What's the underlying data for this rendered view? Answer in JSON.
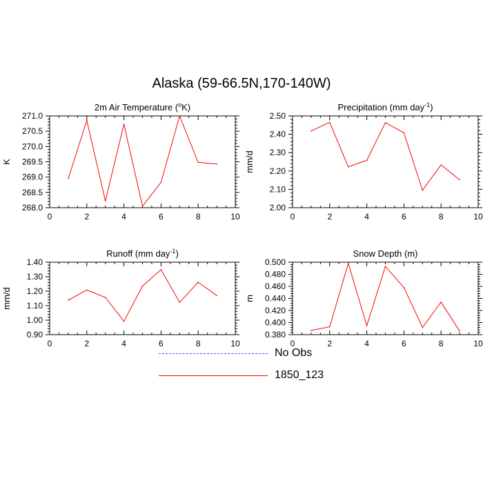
{
  "figure_title": "Alaska (59-66.5N,170-140W)",
  "legend": {
    "items": [
      {
        "label": "No Obs",
        "color": "#4a4aff",
        "dash": true
      },
      {
        "label": "1850_123",
        "color": "#ff0000",
        "dash": false
      }
    ]
  },
  "chart_data": [
    {
      "type": "line",
      "title_pre": "2m Air Temperature (",
      "title_sup": "o",
      "title_post": "K)",
      "ylabel": "K",
      "xlim": [
        0,
        10
      ],
      "ylim": [
        268.0,
        271.0
      ],
      "xticks": [
        0,
        2,
        4,
        6,
        8,
        10
      ],
      "yticks": [
        268.0,
        268.5,
        269.0,
        269.5,
        270.0,
        270.5,
        271.0
      ],
      "ytick_labels": [
        "268.0",
        "268.5",
        "269.0",
        "269.5",
        "270.0",
        "270.5",
        "271.0"
      ],
      "series": [
        {
          "color": "#ff0000",
          "x": [
            1,
            2,
            3,
            4,
            5,
            6,
            7,
            8,
            9
          ],
          "y": [
            268.95,
            270.85,
            268.22,
            270.73,
            268.05,
            268.83,
            271.0,
            269.48,
            269.43
          ]
        }
      ]
    },
    {
      "type": "line",
      "title_pre": "Precipitation (mm day",
      "title_sup": "-1",
      "title_post": ")",
      "ylabel": "mm/d",
      "xlim": [
        0,
        10
      ],
      "ylim": [
        2.0,
        2.5
      ],
      "xticks": [
        0,
        2,
        4,
        6,
        8,
        10
      ],
      "yticks": [
        2.0,
        2.1,
        2.2,
        2.3,
        2.4,
        2.5
      ],
      "ytick_labels": [
        "2.00",
        "2.10",
        "2.20",
        "2.30",
        "2.40",
        "2.50"
      ],
      "series": [
        {
          "color": "#ff0000",
          "x": [
            1,
            2,
            3,
            4,
            5,
            6,
            7,
            8,
            9
          ],
          "y": [
            2.418,
            2.465,
            2.223,
            2.258,
            2.463,
            2.408,
            2.095,
            2.233,
            2.152
          ]
        }
      ]
    },
    {
      "type": "line",
      "title_pre": "Runoff (mm day",
      "title_sup": "-1",
      "title_post": ")",
      "ylabel": "mm/d",
      "xlim": [
        0,
        10
      ],
      "ylim": [
        0.9,
        1.4
      ],
      "xticks": [
        0,
        2,
        4,
        6,
        8,
        10
      ],
      "yticks": [
        0.9,
        1.0,
        1.1,
        1.2,
        1.3,
        1.4
      ],
      "ytick_labels": [
        "0.90",
        "1.00",
        "1.10",
        "1.20",
        "1.30",
        "1.40"
      ],
      "series": [
        {
          "color": "#ff0000",
          "x": [
            1,
            2,
            3,
            4,
            5,
            6,
            7,
            8,
            9
          ],
          "y": [
            1.138,
            1.208,
            1.157,
            0.992,
            1.235,
            1.348,
            1.123,
            1.262,
            1.17
          ]
        }
      ]
    },
    {
      "type": "line",
      "title_pre": "Snow Depth (m)",
      "title_sup": "",
      "title_post": "",
      "ylabel": "m",
      "xlim": [
        0,
        10
      ],
      "ylim": [
        0.38,
        0.5
      ],
      "xticks": [
        0,
        2,
        4,
        6,
        8,
        10
      ],
      "yticks": [
        0.38,
        0.4,
        0.42,
        0.44,
        0.46,
        0.48,
        0.5
      ],
      "ytick_labels": [
        "0.380",
        "0.400",
        "0.420",
        "0.440",
        "0.460",
        "0.480",
        "0.500"
      ],
      "series": [
        {
          "color": "#ff0000",
          "x": [
            1,
            2,
            3,
            4,
            5,
            6,
            7,
            8,
            9
          ],
          "y": [
            0.387,
            0.393,
            0.498,
            0.395,
            0.493,
            0.458,
            0.392,
            0.434,
            0.386
          ]
        }
      ]
    }
  ]
}
